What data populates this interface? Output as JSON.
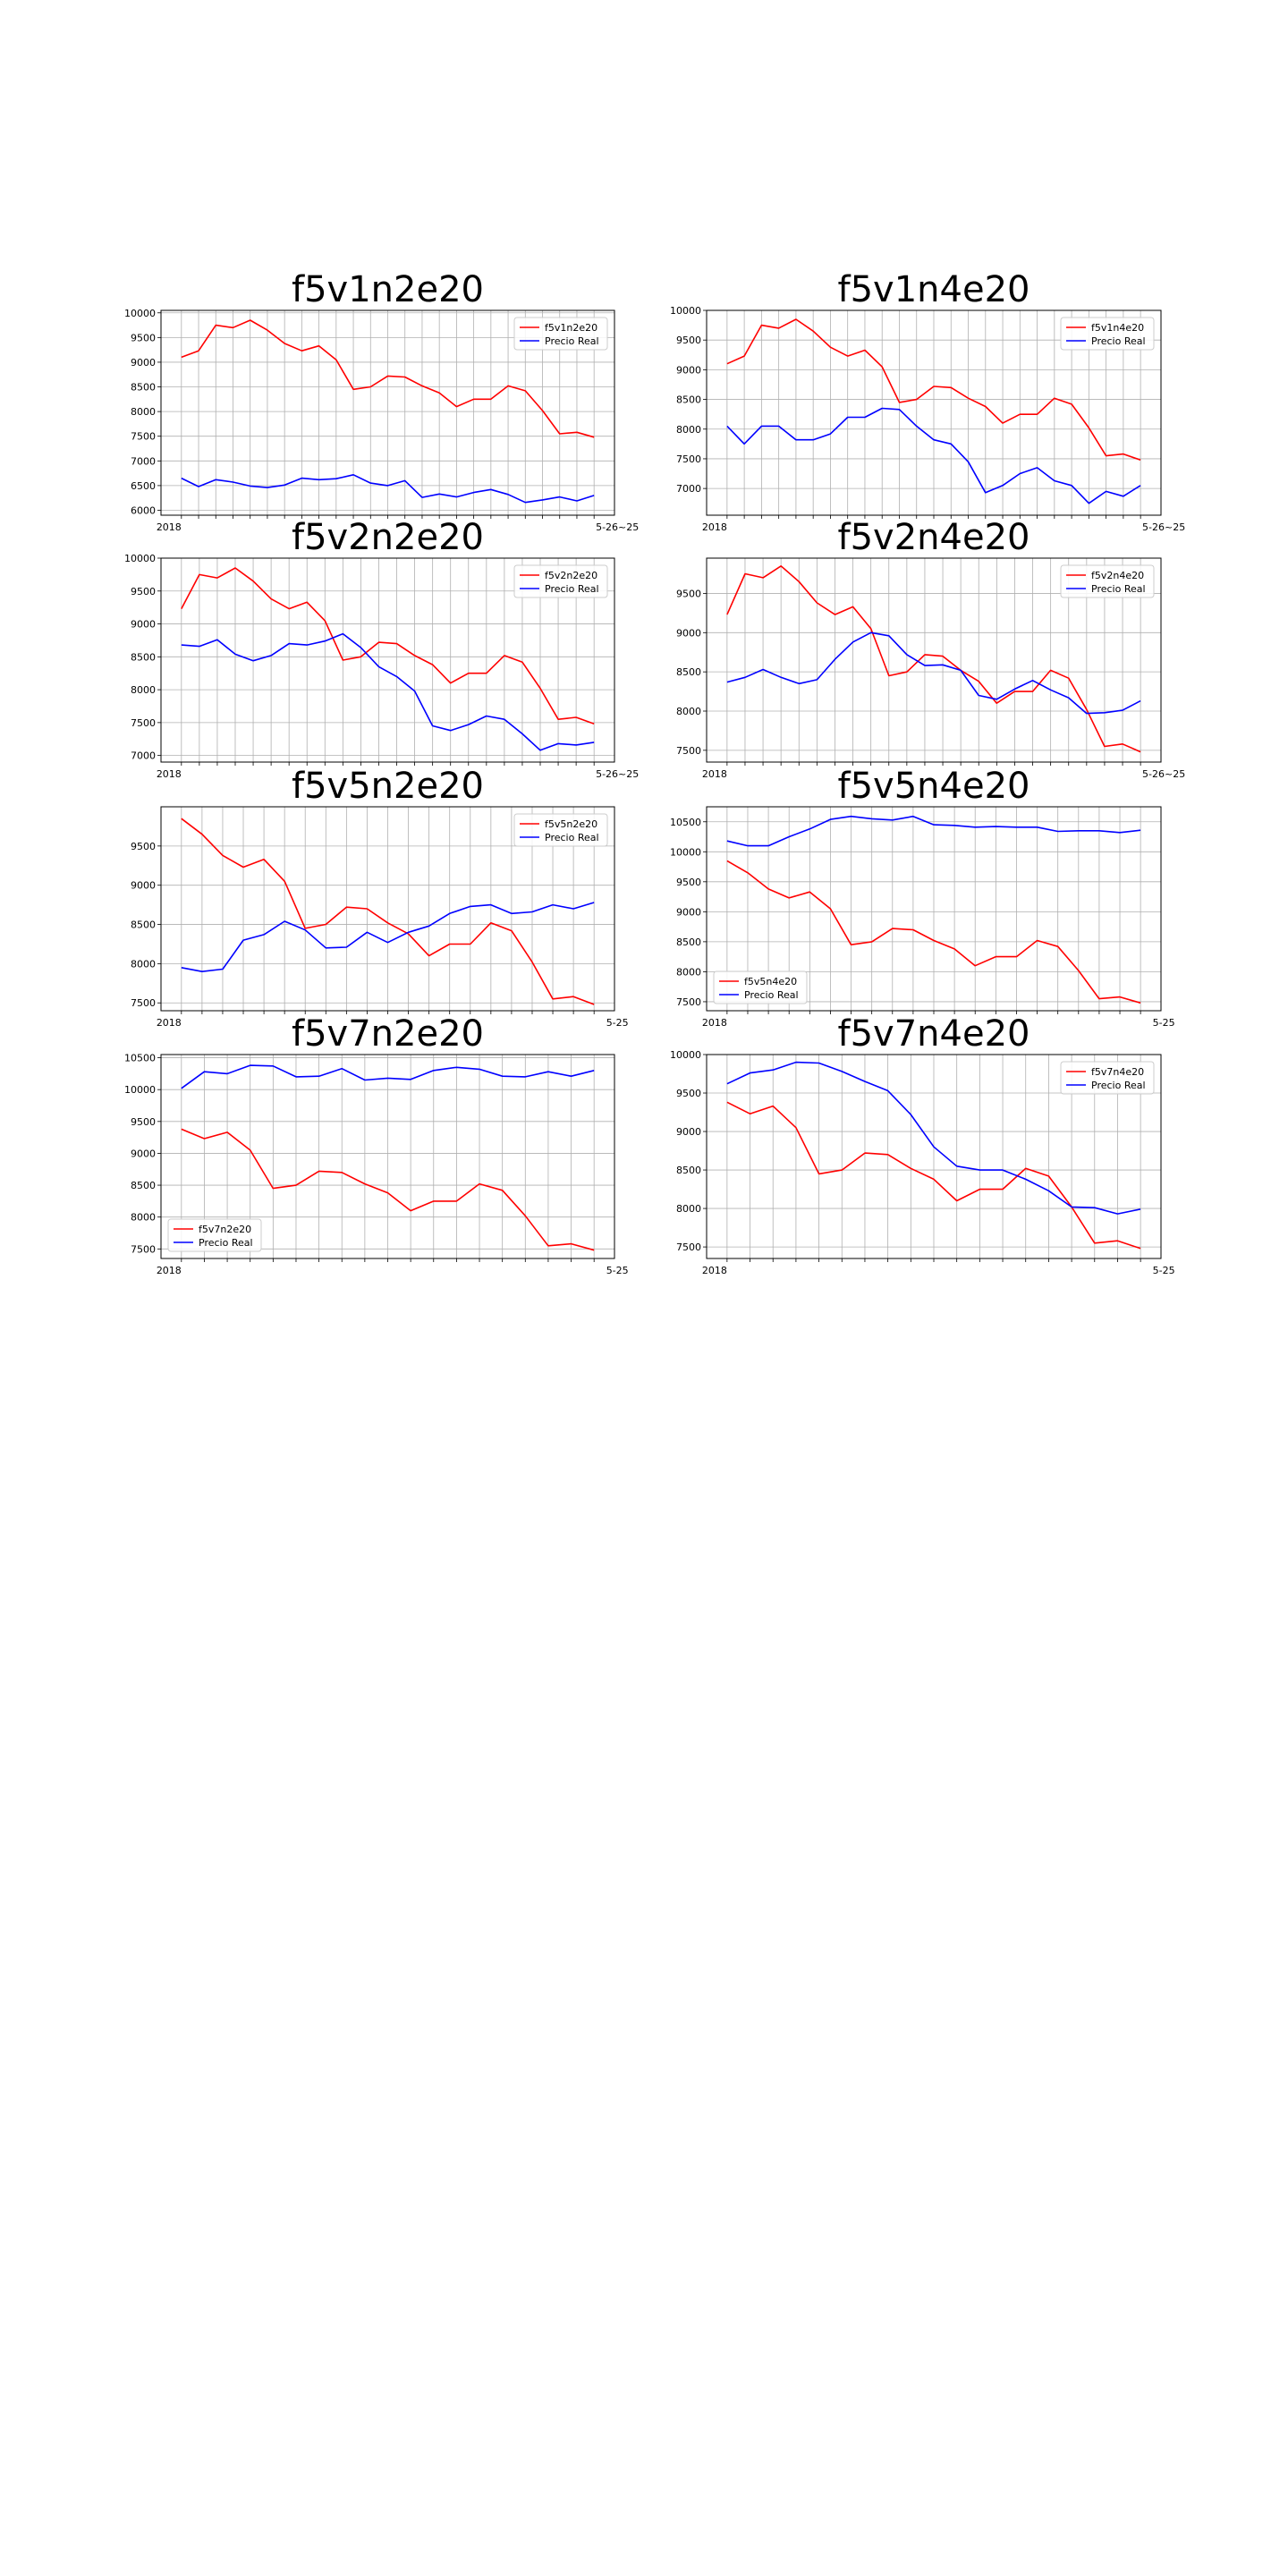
{
  "colors": {
    "model": "#ff0000",
    "real": "#0000ff",
    "grid": "#b0b0b0",
    "axis": "#000000"
  },
  "chart_data": [
    {
      "type": "line",
      "title": "f5v1n2e20",
      "xlabel": "",
      "ylabel": "",
      "grid": true,
      "legend": "top-right",
      "ylim": [
        5900,
        10050
      ],
      "yticks": [
        6000,
        6500,
        7000,
        7500,
        8000,
        8500,
        9000,
        9500,
        10000
      ],
      "x_start_label": "2018",
      "x_end_label": "5-26~25",
      "series": [
        {
          "name": "f5v1n2e20",
          "color": "#ff0000",
          "values": [
            9100,
            9230,
            9750,
            9700,
            9850,
            9650,
            9380,
            9230,
            9330,
            9050,
            8450,
            8500,
            8720,
            8700,
            8520,
            8380,
            8100,
            8250,
            8250,
            8520,
            8420,
            8020,
            7550,
            7580,
            7480
          ]
        },
        {
          "name": "Precio Real",
          "color": "#0000ff",
          "values": [
            6650,
            6480,
            6620,
            6570,
            6490,
            6460,
            6510,
            6650,
            6620,
            6640,
            6720,
            6550,
            6500,
            6600,
            6260,
            6330,
            6270,
            6360,
            6420,
            6320,
            6160,
            6210,
            6270,
            6190,
            6300
          ]
        }
      ]
    },
    {
      "type": "line",
      "title": "f5v1n4e20",
      "xlabel": "",
      "ylabel": "",
      "grid": true,
      "legend": "top-right",
      "ylim": [
        6550,
        10000
      ],
      "yticks": [
        7000,
        7500,
        8000,
        8500,
        9000,
        9500,
        10000
      ],
      "x_start_label": "2018",
      "x_end_label": "5-26~25",
      "series": [
        {
          "name": "f5v1n4e20",
          "color": "#ff0000",
          "values": [
            9100,
            9230,
            9750,
            9700,
            9850,
            9650,
            9380,
            9230,
            9330,
            9050,
            8450,
            8500,
            8720,
            8700,
            8520,
            8380,
            8100,
            8250,
            8250,
            8520,
            8420,
            8020,
            7550,
            7580,
            7480
          ]
        },
        {
          "name": "Precio Real",
          "color": "#0000ff",
          "values": [
            8050,
            7750,
            8050,
            8050,
            7820,
            7820,
            7920,
            8200,
            8200,
            8350,
            8330,
            8050,
            7820,
            7750,
            7450,
            6930,
            7050,
            7250,
            7350,
            7130,
            7050,
            6750,
            6950,
            6870,
            7050
          ]
        }
      ]
    },
    {
      "type": "line",
      "title": "f5v2n2e20",
      "xlabel": "",
      "ylabel": "",
      "grid": true,
      "legend": "top-right",
      "ylim": [
        6900,
        10000
      ],
      "yticks": [
        7000,
        7500,
        8000,
        8500,
        9000,
        9500,
        10000
      ],
      "x_start_label": "2018",
      "x_end_label": "5-26~25",
      "series": [
        {
          "name": "f5v2n2e20",
          "color": "#ff0000",
          "values": [
            9230,
            9750,
            9700,
            9850,
            9650,
            9380,
            9230,
            9330,
            9050,
            8450,
            8500,
            8720,
            8700,
            8520,
            8380,
            8100,
            8250,
            8250,
            8520,
            8420,
            8020,
            7550,
            7580,
            7480
          ]
        },
        {
          "name": "Precio Real",
          "color": "#0000ff",
          "values": [
            8680,
            8660,
            8760,
            8540,
            8440,
            8520,
            8700,
            8680,
            8740,
            8850,
            8640,
            8350,
            8200,
            7980,
            7450,
            7380,
            7470,
            7600,
            7550,
            7330,
            7080,
            7180,
            7160,
            7200
          ]
        }
      ]
    },
    {
      "type": "line",
      "title": "f5v2n4e20",
      "xlabel": "",
      "ylabel": "",
      "grid": true,
      "legend": "top-right",
      "ylim": [
        7350,
        9950
      ],
      "yticks": [
        7500,
        8000,
        8500,
        9000,
        9500
      ],
      "x_start_label": "2018",
      "x_end_label": "5-26~25",
      "series": [
        {
          "name": "f5v2n4e20",
          "color": "#ff0000",
          "values": [
            9230,
            9750,
            9700,
            9850,
            9650,
            9380,
            9230,
            9330,
            9050,
            8450,
            8500,
            8720,
            8700,
            8520,
            8380,
            8100,
            8250,
            8250,
            8520,
            8420,
            8020,
            7550,
            7580,
            7480
          ]
        },
        {
          "name": "Precio Real",
          "color": "#0000ff",
          "values": [
            8370,
            8430,
            8530,
            8430,
            8350,
            8400,
            8660,
            8880,
            9000,
            8960,
            8720,
            8580,
            8590,
            8520,
            8200,
            8150,
            8280,
            8390,
            8270,
            8170,
            7970,
            7980,
            8010,
            8130
          ]
        }
      ]
    },
    {
      "type": "line",
      "title": "f5v5n2e20",
      "xlabel": "",
      "ylabel": "",
      "grid": true,
      "legend": "top-right",
      "ylim": [
        7400,
        10000
      ],
      "yticks": [
        7500,
        8000,
        8500,
        9000,
        9500
      ],
      "x_start_label": "2018",
      "x_end_label": "5-25",
      "series": [
        {
          "name": "f5v5n2e20",
          "color": "#ff0000",
          "values": [
            9850,
            9650,
            9380,
            9230,
            9330,
            9050,
            8450,
            8500,
            8720,
            8700,
            8520,
            8380,
            8100,
            8250,
            8250,
            8520,
            8420,
            8020,
            7550,
            7580,
            7480
          ]
        },
        {
          "name": "Precio Real",
          "color": "#0000ff",
          "values": [
            7950,
            7900,
            7930,
            8300,
            8370,
            8540,
            8430,
            8200,
            8210,
            8400,
            8270,
            8400,
            8480,
            8640,
            8730,
            8750,
            8640,
            8660,
            8750,
            8700,
            8780
          ]
        }
      ]
    },
    {
      "type": "line",
      "title": "f5v5n4e20",
      "xlabel": "",
      "ylabel": "",
      "grid": true,
      "legend": "lower-left",
      "ylim": [
        7350,
        10750
      ],
      "yticks": [
        7500,
        8000,
        8500,
        9000,
        9500,
        10000,
        10500
      ],
      "x_start_label": "2018",
      "x_end_label": "5-25",
      "series": [
        {
          "name": "f5v5n4e20",
          "color": "#ff0000",
          "values": [
            9850,
            9650,
            9380,
            9230,
            9330,
            9050,
            8450,
            8500,
            8720,
            8700,
            8520,
            8380,
            8100,
            8250,
            8250,
            8520,
            8420,
            8020,
            7550,
            7580,
            7480
          ]
        },
        {
          "name": "Precio Real",
          "color": "#0000ff",
          "values": [
            10180,
            10100,
            10100,
            10250,
            10380,
            10540,
            10590,
            10550,
            10530,
            10590,
            10450,
            10440,
            10410,
            10420,
            10410,
            10410,
            10340,
            10350,
            10350,
            10320,
            10360
          ]
        }
      ]
    },
    {
      "type": "line",
      "title": "f5v7n2e20",
      "xlabel": "",
      "ylabel": "",
      "grid": true,
      "legend": "lower-left",
      "ylim": [
        7350,
        10550
      ],
      "yticks": [
        7500,
        8000,
        8500,
        9000,
        9500,
        10000,
        10500
      ],
      "x_start_label": "2018",
      "x_end_label": "5-25",
      "series": [
        {
          "name": "f5v7n2e20",
          "color": "#ff0000",
          "values": [
            9380,
            9230,
            9330,
            9050,
            8450,
            8500,
            8720,
            8700,
            8520,
            8380,
            8100,
            8250,
            8250,
            8520,
            8420,
            8020,
            7550,
            7580,
            7480
          ]
        },
        {
          "name": "Precio Real",
          "color": "#0000ff",
          "values": [
            10020,
            10280,
            10250,
            10380,
            10370,
            10200,
            10210,
            10330,
            10150,
            10180,
            10160,
            10300,
            10350,
            10320,
            10210,
            10200,
            10280,
            10210,
            10300
          ]
        }
      ]
    },
    {
      "type": "line",
      "title": "f5v7n4e20",
      "xlabel": "",
      "ylabel": "",
      "grid": true,
      "legend": "top-right",
      "ylim": [
        7350,
        10000
      ],
      "yticks": [
        7500,
        8000,
        8500,
        9000,
        9500,
        10000
      ],
      "x_start_label": "2018",
      "x_end_label": "5-25",
      "series": [
        {
          "name": "f5v7n4e20",
          "color": "#ff0000",
          "values": [
            9380,
            9230,
            9330,
            9050,
            8450,
            8500,
            8720,
            8700,
            8520,
            8380,
            8100,
            8250,
            8250,
            8520,
            8420,
            8020,
            7550,
            7580,
            7480
          ]
        },
        {
          "name": "Precio Real",
          "color": "#0000ff",
          "values": [
            9620,
            9760,
            9800,
            9900,
            9890,
            9780,
            9650,
            9530,
            9220,
            8800,
            8550,
            8500,
            8500,
            8380,
            8230,
            8020,
            8010,
            7930,
            7990
          ]
        }
      ]
    }
  ]
}
